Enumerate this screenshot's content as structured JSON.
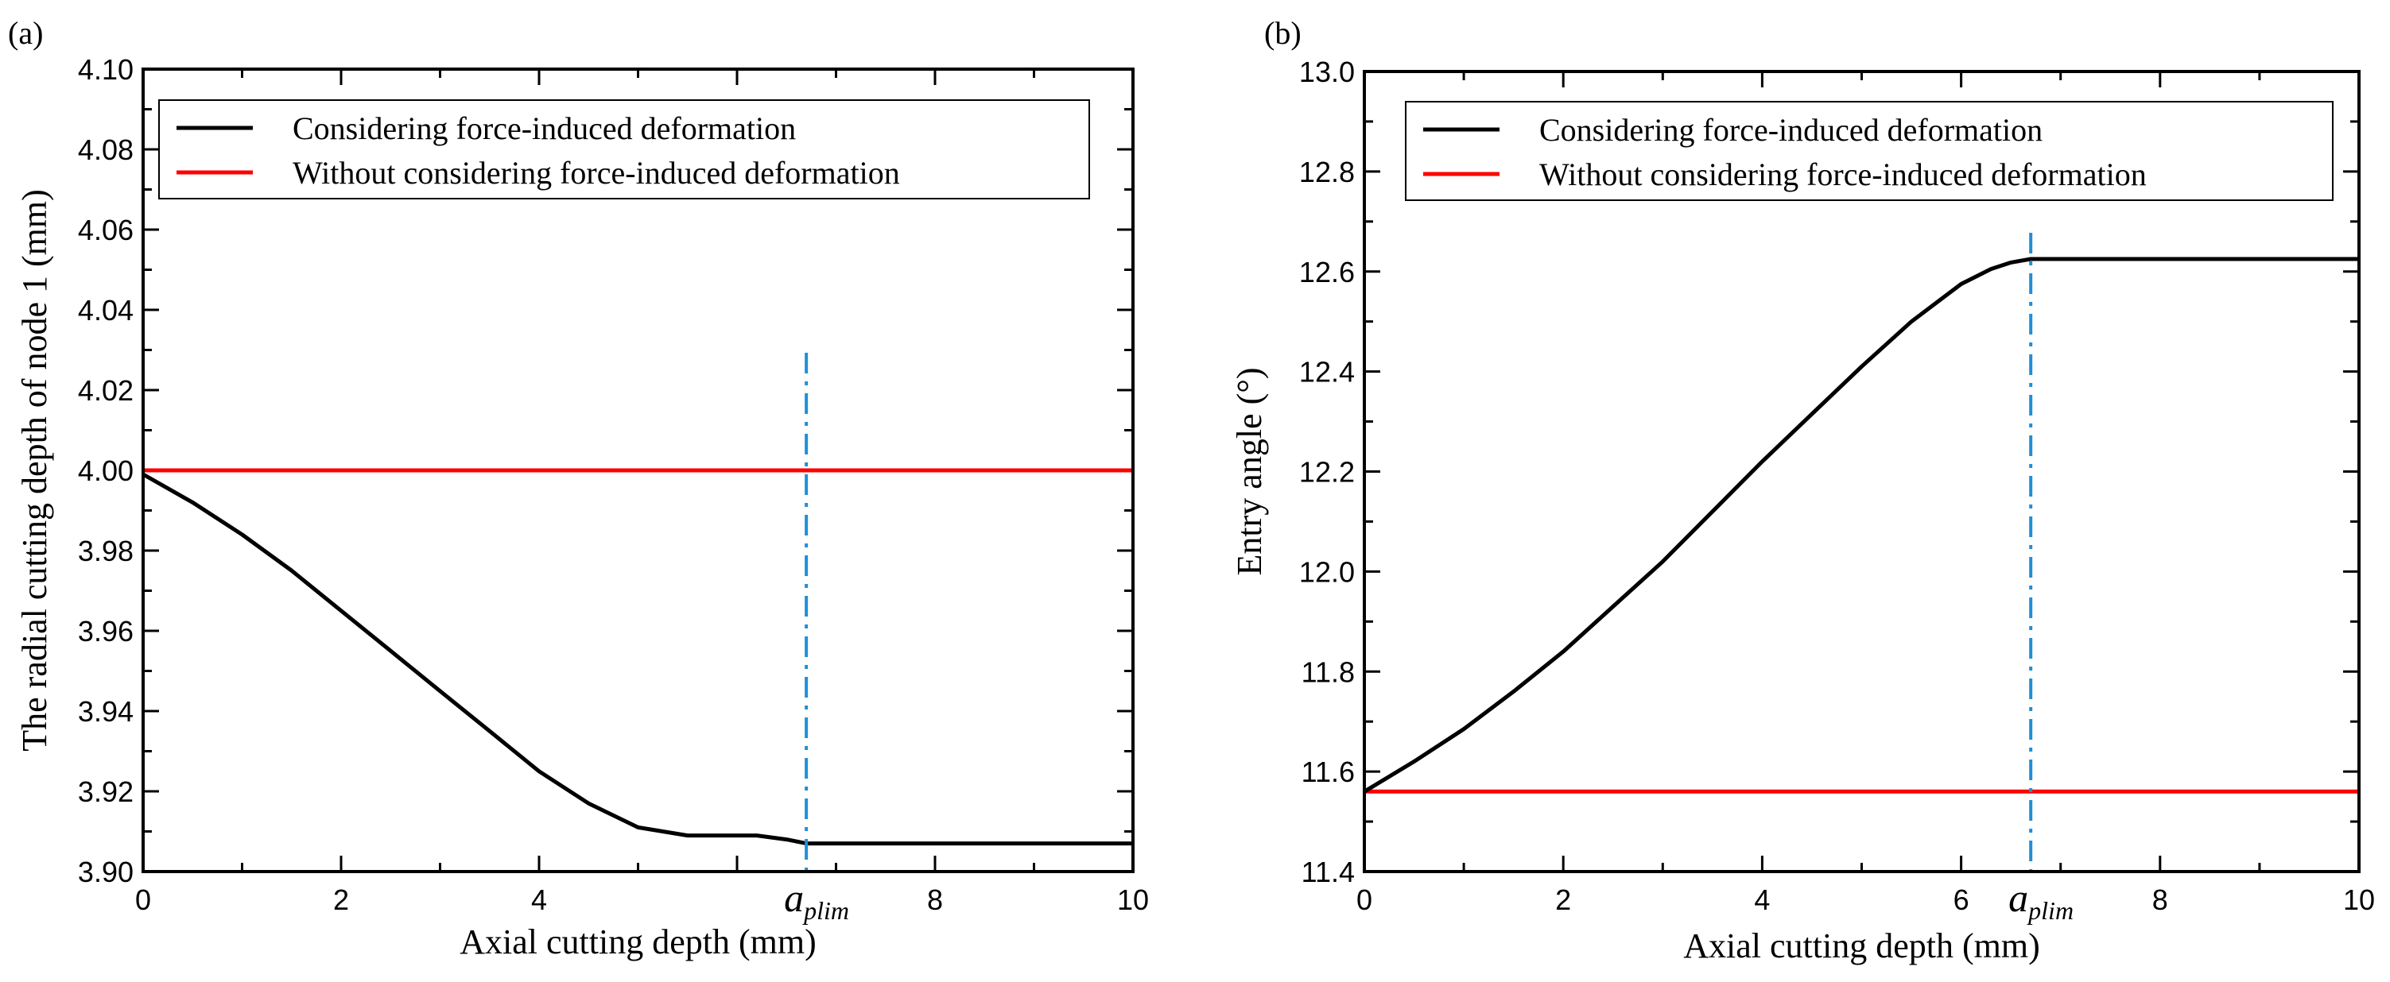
{
  "chart_data": [
    {
      "type": "line",
      "panel_label": "(a)",
      "xlabel": "Axial cutting depth (mm)",
      "ylabel": "The radial cutting depth of node 1 (mm)",
      "xlim": [
        0,
        10
      ],
      "ylim": [
        3.9,
        4.1
      ],
      "xticks": [
        0,
        2,
        4,
        8,
        10
      ],
      "xtick_labels": [
        "0",
        "2",
        "4",
        "8",
        "10"
      ],
      "yticks": [
        3.9,
        3.92,
        3.94,
        3.96,
        3.98,
        4.0,
        4.02,
        4.04,
        4.06,
        4.08,
        4.1
      ],
      "ytick_labels": [
        "3.90",
        "3.92",
        "3.94",
        "3.96",
        "3.98",
        "4.00",
        "4.02",
        "4.04",
        "4.06",
        "4.08",
        "4.10"
      ],
      "legend_position": "top",
      "series": [
        {
          "name": "Considering force-induced deformation",
          "color": "#000000",
          "x": [
            0,
            0.5,
            1,
            1.5,
            2,
            2.5,
            3,
            3.5,
            4,
            4.5,
            5,
            5.5,
            6,
            6.2,
            6.5,
            6.7,
            7,
            8,
            9,
            10
          ],
          "y": [
            3.999,
            3.992,
            3.984,
            3.975,
            3.965,
            3.955,
            3.945,
            3.935,
            3.925,
            3.917,
            3.911,
            3.909,
            3.909,
            3.909,
            3.908,
            3.907,
            3.907,
            3.907,
            3.907,
            3.907
          ]
        },
        {
          "name": "Without considering force-induced deformation",
          "color": "#ff0000",
          "x": [
            0,
            10
          ],
          "y": [
            4.0,
            4.0
          ]
        }
      ],
      "annotation": {
        "type": "vline",
        "x": 6.7,
        "color": "#1f8fd6",
        "label_main": "a",
        "label_sub": "plim"
      }
    },
    {
      "type": "line",
      "panel_label": "(b)",
      "xlabel": "Axial cutting depth (mm)",
      "ylabel": "Entry angle (°)",
      "xlim": [
        0,
        10
      ],
      "ylim": [
        11.4,
        13.0
      ],
      "xticks": [
        0,
        2,
        4,
        6,
        8,
        10
      ],
      "xtick_labels": [
        "0",
        "2",
        "4",
        "6",
        "8",
        "10"
      ],
      "yticks": [
        11.4,
        11.6,
        11.8,
        12.0,
        12.2,
        12.4,
        12.6,
        12.8,
        13.0
      ],
      "ytick_labels": [
        "11.4",
        "11.6",
        "11.8",
        "12.0",
        "12.2",
        "12.4",
        "12.6",
        "12.8",
        "13.0"
      ],
      "legend_position": "top",
      "series": [
        {
          "name": "Considering force-induced deformation",
          "color": "#000000",
          "x": [
            0,
            0.5,
            1,
            1.5,
            2,
            2.5,
            3,
            3.5,
            4,
            4.5,
            5,
            5.5,
            6,
            6.3,
            6.5,
            6.7,
            7,
            8,
            9,
            10
          ],
          "y": [
            11.56,
            11.62,
            11.685,
            11.76,
            11.84,
            11.93,
            12.02,
            12.12,
            12.22,
            12.315,
            12.41,
            12.5,
            12.575,
            12.605,
            12.618,
            12.625,
            12.625,
            12.625,
            12.625,
            12.625
          ]
        },
        {
          "name": "Without considering force-induced deformation",
          "color": "#ff0000",
          "x": [
            0,
            10
          ],
          "y": [
            11.56,
            11.56
          ]
        }
      ],
      "annotation": {
        "type": "vline",
        "x": 6.7,
        "color": "#1f8fd6",
        "label_main": "a",
        "label_sub": "plim"
      }
    }
  ]
}
